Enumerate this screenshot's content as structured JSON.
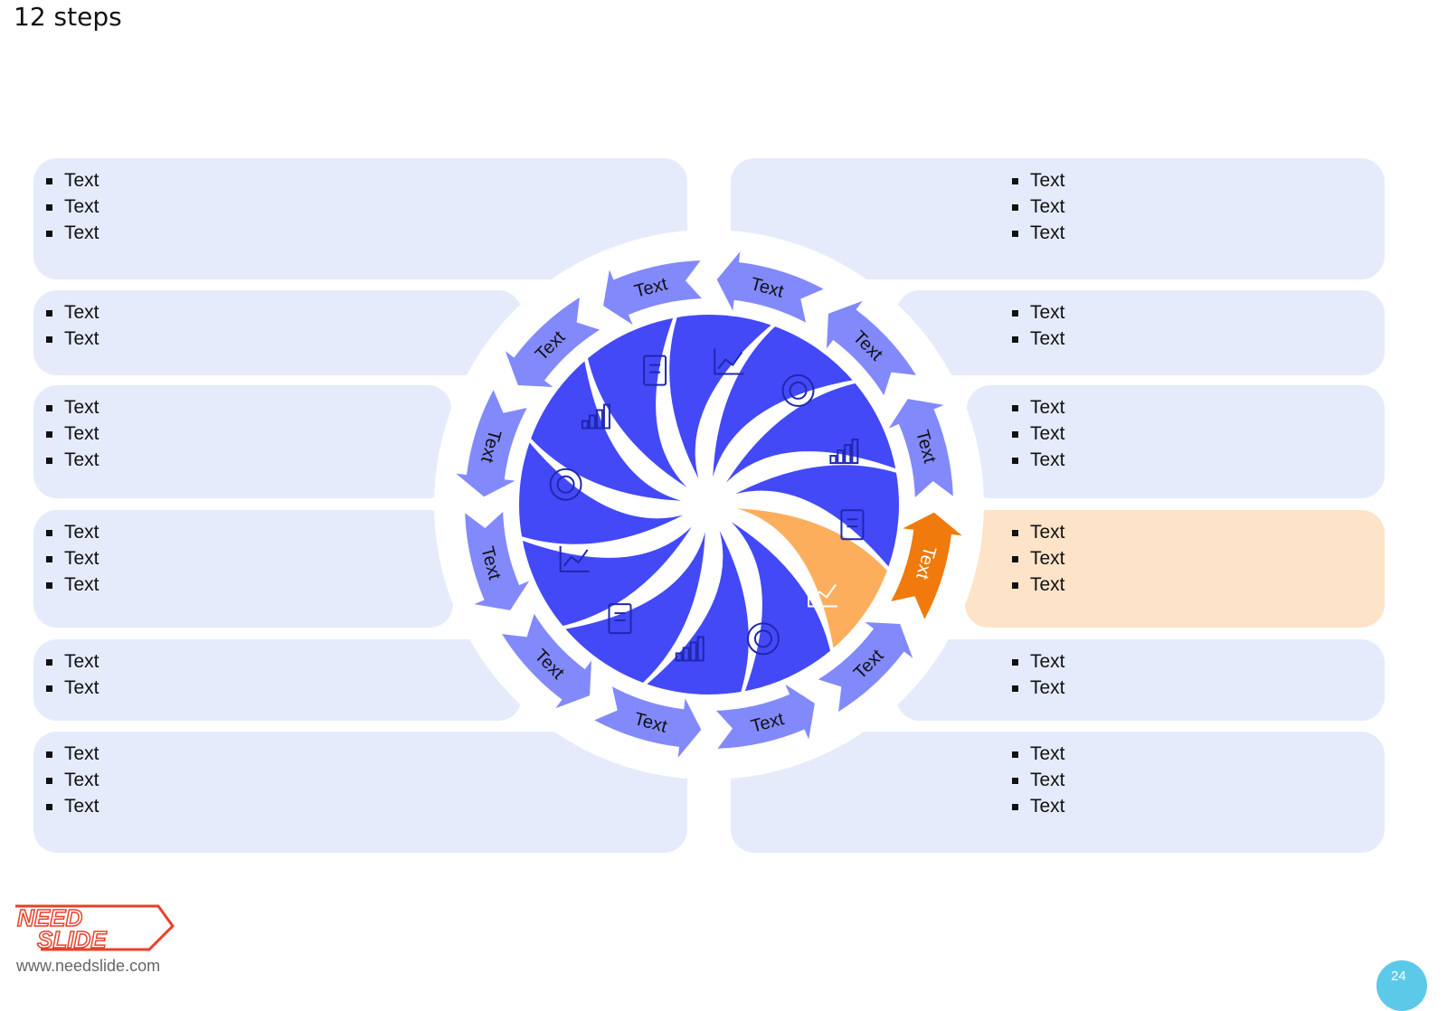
{
  "slide": {
    "title": "12 steps"
  },
  "colors": {
    "petal": "#4349f6",
    "petal_highlight": "#fdae5c",
    "arrow": "#8289fb",
    "arrow_highlight": "#f07a0c",
    "box": "#e6ebfb",
    "box_highlight": "#fde3c8",
    "icon": "#1f27b0"
  },
  "boxes_left": [
    {
      "items": [
        "Text",
        "Text",
        "Text"
      ]
    },
    {
      "items": [
        "Text",
        "Text"
      ]
    },
    {
      "items": [
        "Text",
        "Text",
        "Text"
      ]
    },
    {
      "items": [
        "Text",
        "Text",
        "Text"
      ]
    },
    {
      "items": [
        "Text",
        "Text"
      ]
    },
    {
      "items": [
        "Text",
        "Text",
        "Text"
      ]
    }
  ],
  "boxes_right": [
    {
      "items": [
        "Text",
        "Text",
        "Text"
      ]
    },
    {
      "items": [
        "Text",
        "Text"
      ]
    },
    {
      "items": [
        "Text",
        "Text",
        "Text"
      ]
    },
    {
      "items": [
        "Text",
        "Text",
        "Text"
      ],
      "highlighted": true
    },
    {
      "items": [
        "Text",
        "Text"
      ]
    },
    {
      "items": [
        "Text",
        "Text",
        "Text"
      ]
    }
  ],
  "steps": [
    {
      "label": "Text",
      "icon": "tools-icon"
    },
    {
      "label": "Text",
      "icon": "bar-growth-icon"
    },
    {
      "label": "Text",
      "icon": "apple-icon"
    },
    {
      "label": "Text",
      "icon": "gears-analysis-icon",
      "highlighted": true
    },
    {
      "label": "Text",
      "icon": "bar-chart-icon"
    },
    {
      "label": "Text",
      "icon": "donut-chart-icon"
    },
    {
      "label": "Text",
      "icon": "report-icon"
    },
    {
      "label": "Text",
      "icon": "line-chart-icon"
    },
    {
      "label": "Text",
      "icon": "contract-icon"
    },
    {
      "label": "Text",
      "icon": "ring-icon"
    },
    {
      "label": "Text",
      "icon": "documents-icon"
    },
    {
      "label": "Text",
      "icon": "broken-globe-icon"
    }
  ],
  "footer": {
    "logo_text": "NEED SLIDE",
    "url": "www.needslide.com",
    "page": "24"
  }
}
